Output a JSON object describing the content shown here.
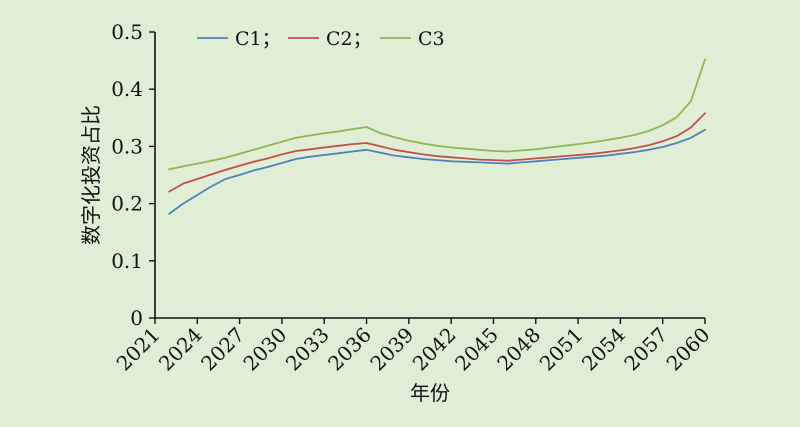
{
  "chart_data": {
    "type": "line",
    "title": "",
    "xlabel": "年份",
    "ylabel": "数字化投资占比",
    "ylim": [
      0,
      0.5
    ],
    "xlim": [
      2021,
      2060
    ],
    "yticks": [
      "0",
      "0.1",
      "0.2",
      "0.3",
      "0.4",
      "0.5"
    ],
    "xticks": [
      "2021",
      "2024",
      "2027",
      "2030",
      "2033",
      "2036",
      "2039",
      "2042",
      "2045",
      "2048",
      "2051",
      "2054",
      "2057",
      "2060"
    ],
    "grid": false,
    "legend_position": "top-left",
    "legend": [
      "C1；",
      "C2；",
      "C3"
    ],
    "colors": {
      "C1": "#4f81bd",
      "C2": "#c0504d",
      "C3": "#8dba4f",
      "axis": "#111111",
      "background": "#e0eed6"
    },
    "series": [
      {
        "name": "C1",
        "x": [
          2022,
          2023,
          2024,
          2025,
          2026,
          2027,
          2028,
          2029,
          2030,
          2031,
          2032,
          2033,
          2034,
          2035,
          2036,
          2037,
          2038,
          2039,
          2040,
          2041,
          2042,
          2043,
          2044,
          2045,
          2046,
          2047,
          2048,
          2049,
          2050,
          2051,
          2052,
          2053,
          2054,
          2055,
          2056,
          2057,
          2058,
          2059,
          2060
        ],
        "values": [
          0.182,
          0.2,
          0.215,
          0.23,
          0.243,
          0.25,
          0.258,
          0.264,
          0.271,
          0.278,
          0.282,
          0.285,
          0.288,
          0.291,
          0.294,
          0.289,
          0.284,
          0.281,
          0.278,
          0.276,
          0.274,
          0.273,
          0.272,
          0.271,
          0.27,
          0.272,
          0.274,
          0.276,
          0.278,
          0.28,
          0.282,
          0.284,
          0.287,
          0.29,
          0.294,
          0.299,
          0.306,
          0.315,
          0.329
        ]
      },
      {
        "name": "C2",
        "x": [
          2022,
          2023,
          2024,
          2025,
          2026,
          2027,
          2028,
          2029,
          2030,
          2031,
          2032,
          2033,
          2034,
          2035,
          2036,
          2037,
          2038,
          2039,
          2040,
          2041,
          2042,
          2043,
          2044,
          2045,
          2046,
          2047,
          2048,
          2049,
          2050,
          2051,
          2052,
          2053,
          2054,
          2055,
          2056,
          2057,
          2058,
          2059,
          2060
        ],
        "values": [
          0.221,
          0.235,
          0.243,
          0.251,
          0.259,
          0.266,
          0.273,
          0.279,
          0.286,
          0.292,
          0.295,
          0.298,
          0.301,
          0.304,
          0.306,
          0.3,
          0.294,
          0.29,
          0.286,
          0.283,
          0.281,
          0.279,
          0.277,
          0.276,
          0.275,
          0.277,
          0.279,
          0.281,
          0.283,
          0.285,
          0.287,
          0.29,
          0.293,
          0.297,
          0.302,
          0.309,
          0.318,
          0.333,
          0.358
        ]
      },
      {
        "name": "C3",
        "x": [
          2022,
          2023,
          2024,
          2025,
          2026,
          2027,
          2028,
          2029,
          2030,
          2031,
          2032,
          2033,
          2034,
          2035,
          2036,
          2037,
          2038,
          2039,
          2040,
          2041,
          2042,
          2043,
          2044,
          2045,
          2046,
          2047,
          2048,
          2049,
          2050,
          2051,
          2052,
          2053,
          2054,
          2055,
          2056,
          2057,
          2058,
          2059,
          2060
        ],
        "values": [
          0.26,
          0.265,
          0.27,
          0.275,
          0.28,
          0.287,
          0.294,
          0.301,
          0.308,
          0.315,
          0.319,
          0.323,
          0.326,
          0.33,
          0.334,
          0.323,
          0.316,
          0.31,
          0.305,
          0.301,
          0.298,
          0.296,
          0.294,
          0.292,
          0.291,
          0.293,
          0.295,
          0.298,
          0.301,
          0.304,
          0.307,
          0.311,
          0.315,
          0.32,
          0.327,
          0.337,
          0.351,
          0.379,
          0.452
        ]
      }
    ]
  }
}
